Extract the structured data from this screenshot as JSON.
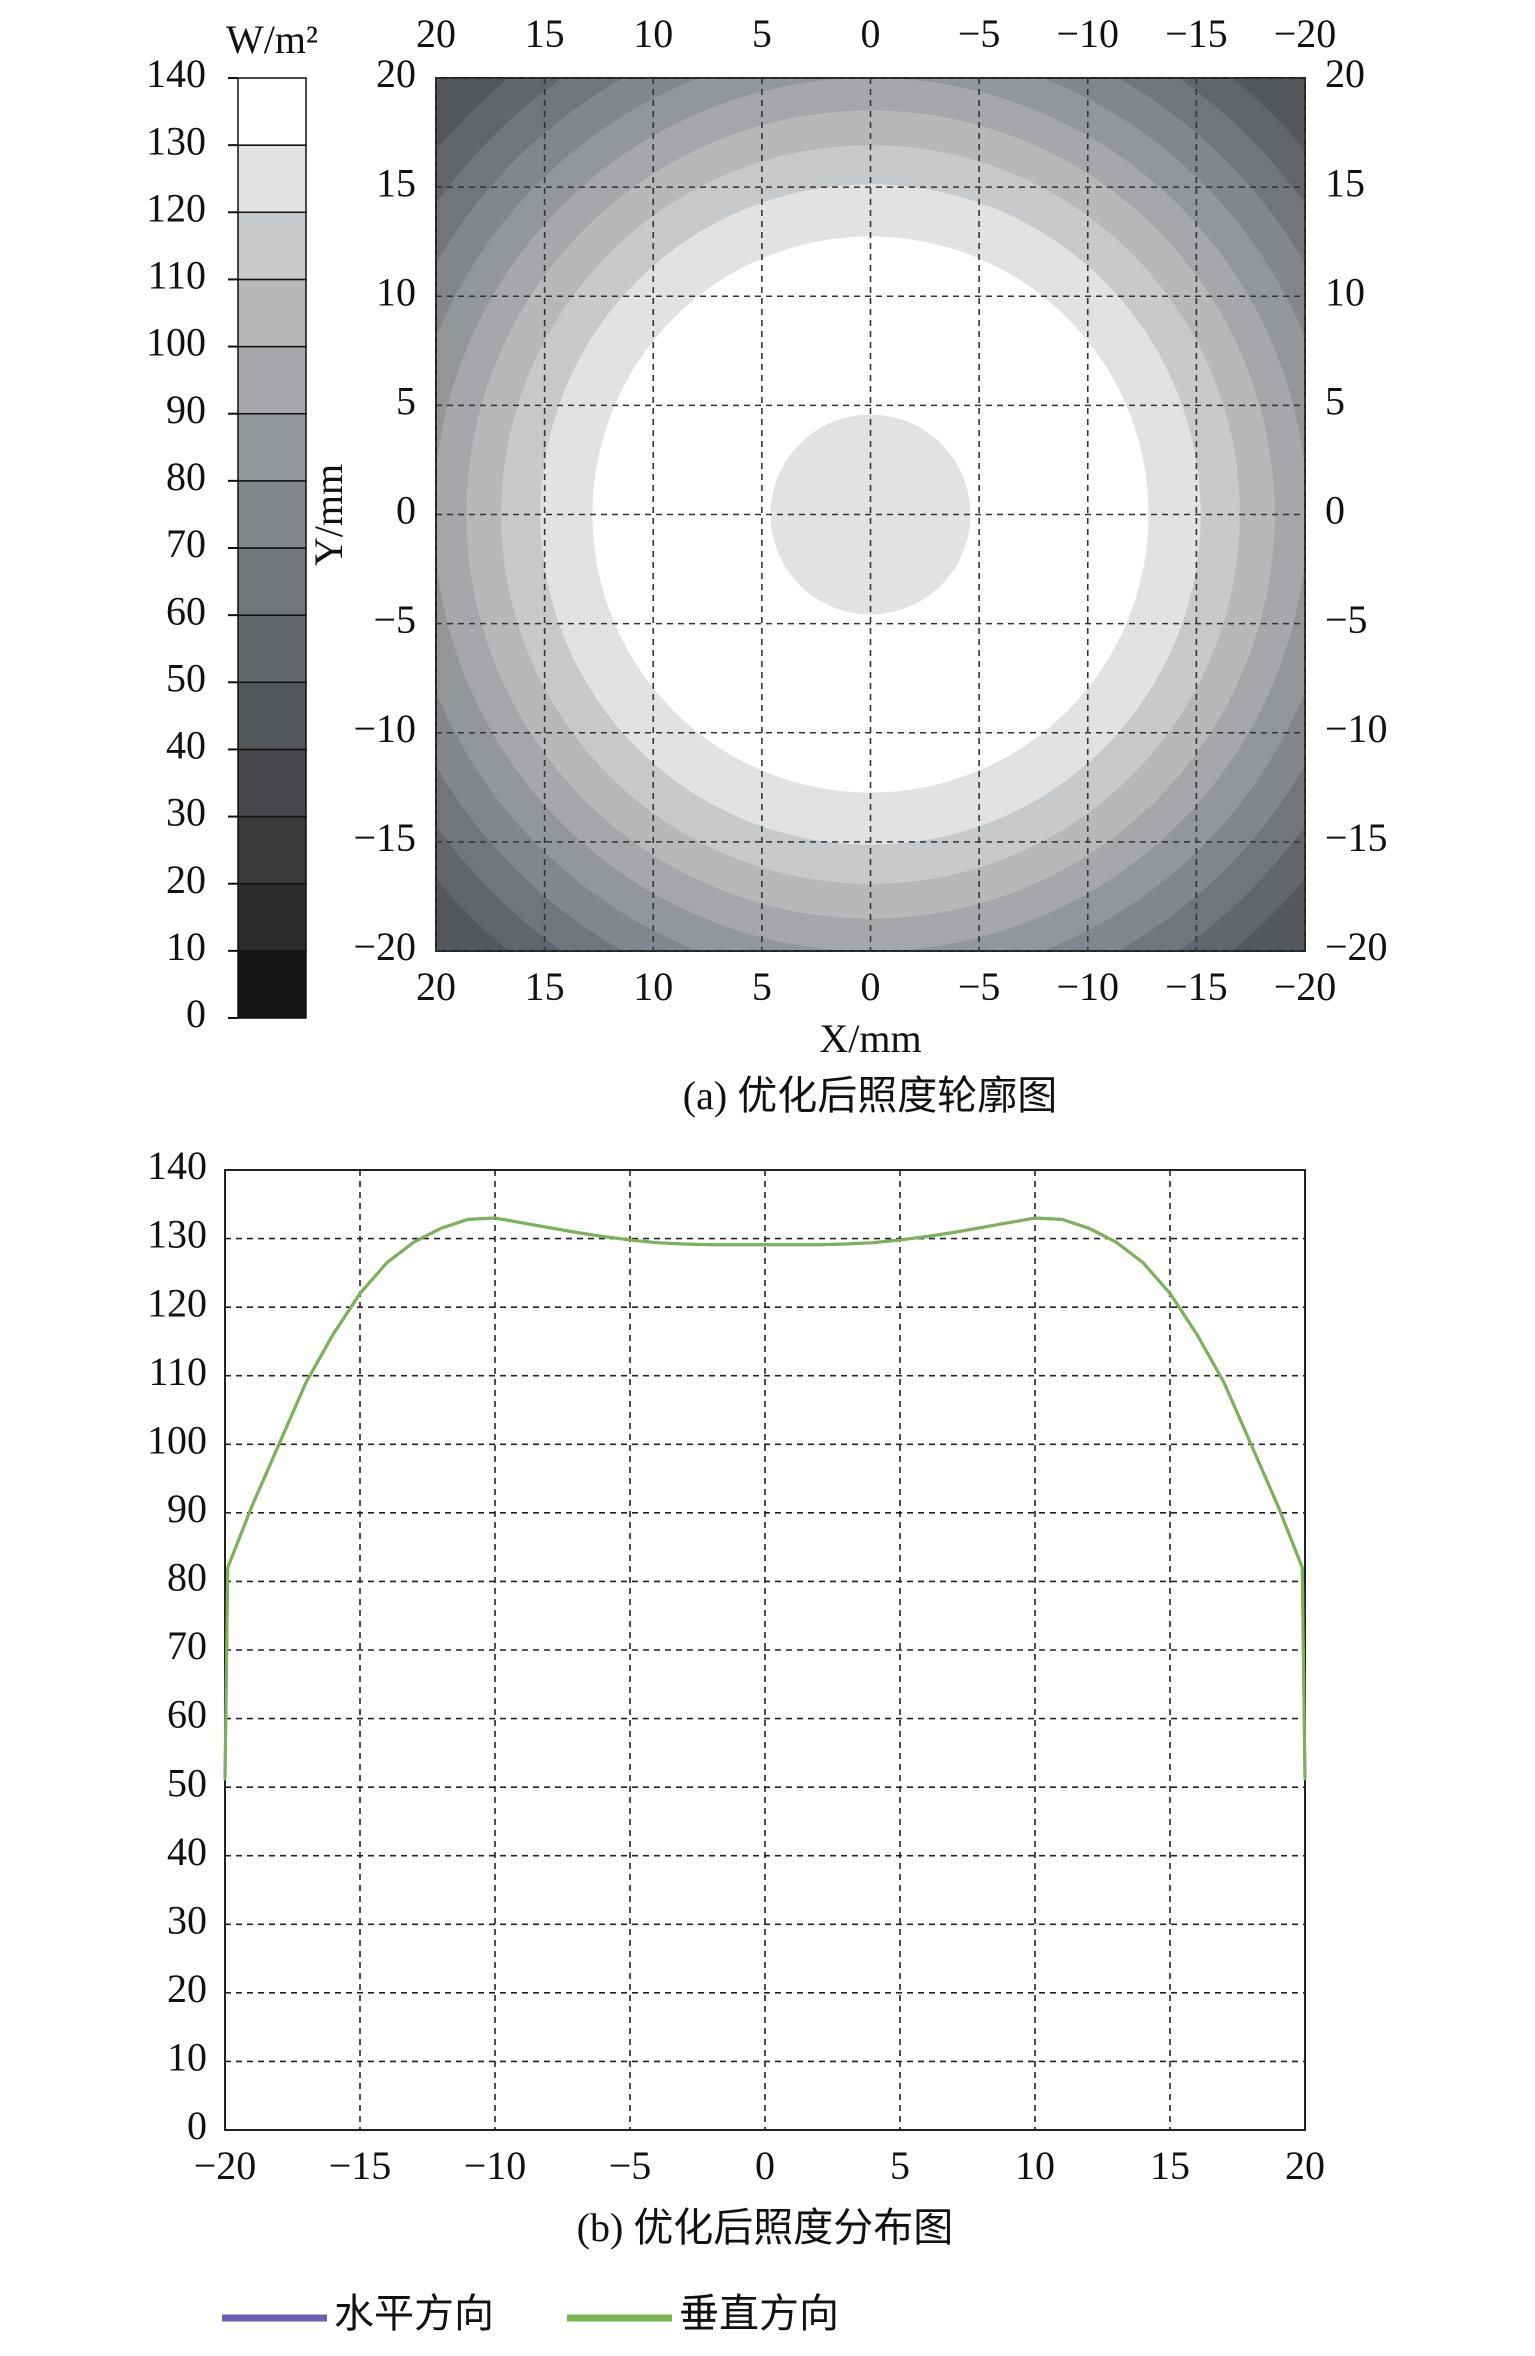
{
  "chart_data": [
    {
      "type": "contour",
      "title": "(a) 优化后照度轮廓图",
      "unit": "W/m²",
      "x_label": "X/mm",
      "y_label": "Y/mm",
      "xlim": [
        20,
        -20
      ],
      "ylim": [
        -20,
        20
      ],
      "grid": true,
      "xticks": [
        20,
        15,
        10,
        5,
        0,
        {
          "value": -5,
          "label": "−5"
        },
        {
          "value": -10,
          "label": "−10"
        },
        {
          "value": -15,
          "label": "−15"
        },
        {
          "value": -20,
          "label": "−20"
        }
      ],
      "yticks": [
        {
          "value": -20,
          "label": "−20"
        },
        {
          "value": -15,
          "label": "−15"
        },
        {
          "value": -10,
          "label": "−10"
        },
        {
          "value": -5,
          "label": "−5"
        },
        0,
        5,
        10,
        15,
        20
      ],
      "colorbar": {
        "lim": [
          0,
          140
        ],
        "ticks": [
          0,
          10,
          20,
          30,
          40,
          50,
          60,
          70,
          80,
          90,
          100,
          110,
          120,
          130,
          140
        ],
        "colors": [
          "#141414",
          "#2b2b2c",
          "#38393b",
          "#45474a",
          "#53565a",
          "#626569",
          "#727579",
          "#83868a",
          "#94979a",
          "#a5a7aa",
          "#b6b8ba",
          "#c8c9cb",
          "#e2e2e2",
          "#ffffff"
        ]
      },
      "bands": {
        "r": [
          28.3,
          26.1,
          24.6,
          23.1,
          21.6,
          20.1,
          18.6,
          17,
          15.2,
          12.8,
          4.6
        ],
        "levels": [
          40,
          50,
          60,
          70,
          80,
          90,
          100,
          110,
          120,
          130,
          120
        ]
      }
    },
    {
      "type": "line",
      "title": "(b) 优化后照度分布图",
      "xlim": [
        -20,
        20
      ],
      "ylim": [
        0,
        140
      ],
      "grid": true,
      "xticks": [
        {
          "value": -20,
          "label": "−20"
        },
        {
          "value": -15,
          "label": "−15"
        },
        {
          "value": -10,
          "label": "−10"
        },
        {
          "value": -5,
          "label": "−5"
        },
        0,
        5,
        10,
        15,
        20
      ],
      "yticks": [
        0,
        10,
        20,
        30,
        40,
        50,
        60,
        70,
        80,
        90,
        100,
        110,
        120,
        130,
        140
      ],
      "x": [
        -20,
        -19.9,
        -19,
        -18,
        -17,
        -16,
        -15,
        -14,
        -13,
        -12,
        -11,
        -10,
        -9,
        -8,
        -7,
        -6,
        -5,
        -4,
        -3,
        -2,
        -1,
        0,
        1,
        2,
        3,
        4,
        5,
        6,
        7,
        8,
        9,
        10,
        11,
        12,
        13,
        14,
        15,
        16,
        17,
        18,
        19,
        19.9,
        20
      ],
      "series": [
        {
          "name": "水平方向",
          "color": "#6a5fb0",
          "values": [
            51,
            82,
            91,
            100,
            109,
            116,
            122,
            126.5,
            129.5,
            131.5,
            132.8,
            133,
            132.3,
            131.6,
            130.9,
            130.3,
            129.8,
            129.4,
            129.2,
            129.1,
            129.1,
            129.1,
            129.1,
            129.1,
            129.2,
            129.4,
            129.8,
            130.3,
            130.9,
            131.6,
            132.3,
            133,
            132.8,
            131.5,
            129.5,
            126.5,
            122,
            116,
            109,
            100,
            91,
            82,
            51
          ]
        },
        {
          "name": "垂直方向",
          "color": "#79b552",
          "values": [
            51,
            82,
            91,
            100,
            109,
            116,
            122,
            126.5,
            129.5,
            131.5,
            132.8,
            133,
            132.3,
            131.6,
            130.9,
            130.3,
            129.8,
            129.4,
            129.2,
            129.1,
            129.1,
            129.1,
            129.1,
            129.1,
            129.2,
            129.4,
            129.8,
            130.3,
            130.9,
            131.6,
            132.3,
            133,
            132.8,
            131.5,
            129.5,
            126.5,
            122,
            116,
            109,
            100,
            91,
            82,
            51
          ]
        }
      ]
    }
  ]
}
